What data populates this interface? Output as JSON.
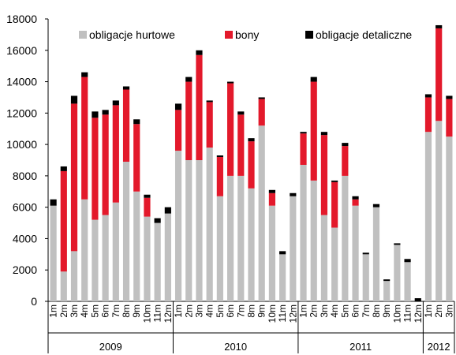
{
  "chart_data": {
    "type": "bar",
    "stacked": true,
    "ylim": [
      0,
      18000
    ],
    "yticks": [
      0,
      2000,
      4000,
      6000,
      8000,
      10000,
      12000,
      14000,
      16000,
      18000
    ],
    "grid": false,
    "legend_position": "top",
    "categories": [
      "1m",
      "2m",
      "3m",
      "4m",
      "5m",
      "6m",
      "7m",
      "8m",
      "9m",
      "10m",
      "11m",
      "12m",
      "1m",
      "2m",
      "3m",
      "4m",
      "5m",
      "6m",
      "7m",
      "8m",
      "9m",
      "10m",
      "11m",
      "12m",
      "1m",
      "2m",
      "3m",
      "4m",
      "5m",
      "6m",
      "7m",
      "8m",
      "9m",
      "10m",
      "11m",
      "12m",
      "1m",
      "2m",
      "3m"
    ],
    "year_groups": [
      {
        "label": "2009",
        "count": 12
      },
      {
        "label": "2010",
        "count": 12
      },
      {
        "label": "2011",
        "count": 12
      },
      {
        "label": "2012",
        "count": 3
      }
    ],
    "series": [
      {
        "name": "obligacje hurtowe",
        "color": "#c0c0c0",
        "values": [
          6100,
          1900,
          3200,
          6500,
          5200,
          5500,
          6300,
          8900,
          7000,
          5400,
          5000,
          5600,
          9600,
          9000,
          9000,
          9800,
          6700,
          8000,
          8000,
          7200,
          11200,
          6100,
          3000,
          6700,
          8700,
          7700,
          5500,
          4700,
          8000,
          6100,
          3000,
          6000,
          1300,
          3600,
          2500,
          0,
          10800,
          11500,
          10500
        ]
      },
      {
        "name": "bony",
        "color": "#e3192b",
        "values": [
          0,
          6400,
          9400,
          7800,
          6500,
          6400,
          6200,
          4600,
          4300,
          1200,
          0,
          0,
          2600,
          5000,
          6700,
          2900,
          2500,
          5900,
          3900,
          3000,
          1700,
          800,
          0,
          0,
          2000,
          6300,
          5100,
          2900,
          1900,
          400,
          0,
          0,
          0,
          0,
          0,
          0,
          2200,
          5900,
          2400
        ]
      },
      {
        "name": "obligacje detaliczne",
        "color": "#000000",
        "values": [
          400,
          300,
          500,
          300,
          400,
          300,
          300,
          200,
          300,
          200,
          300,
          400,
          400,
          300,
          300,
          100,
          100,
          100,
          200,
          200,
          100,
          200,
          200,
          200,
          100,
          300,
          200,
          100,
          200,
          200,
          100,
          200,
          100,
          100,
          200,
          200,
          200,
          200,
          200
        ]
      }
    ]
  }
}
